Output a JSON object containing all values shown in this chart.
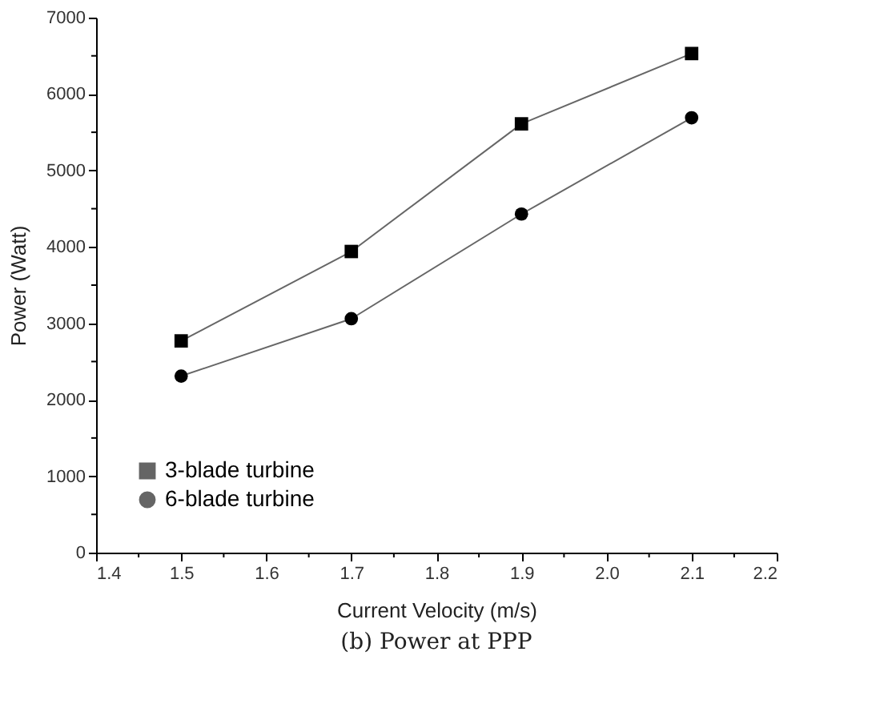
{
  "chart_data": {
    "type": "line",
    "xlabel": "Current Velocity (m/s)",
    "ylabel": "Power (Watt)",
    "x": [
      1.5,
      1.7,
      1.9,
      2.1
    ],
    "series": [
      {
        "name": "3-blade turbine",
        "color": "#000000",
        "marker": "square",
        "values": [
          2770,
          3940,
          5610,
          6530
        ]
      },
      {
        "name": "6-blade turbine",
        "color": "#000000",
        "marker": "circle",
        "values": [
          2310,
          3060,
          4430,
          5690
        ]
      }
    ],
    "xlim": [
      1.4,
      2.2
    ],
    "xticks": [
      1.4,
      {
        "value": 1.45,
        "label": null
      },
      1.5,
      {
        "value": 1.55,
        "label": null
      },
      1.6,
      {
        "value": 1.65,
        "label": null
      },
      1.7,
      {
        "value": 1.75,
        "label": null
      },
      1.8,
      {
        "value": 1.85,
        "label": null
      },
      1.9,
      {
        "value": 1.95,
        "label": null
      },
      {
        "value": 2.0,
        "label": "2.0"
      },
      {
        "value": 2.05,
        "label": null
      },
      2.1,
      {
        "value": 2.15,
        "label": null
      },
      2.2
    ],
    "ylim": [
      0,
      7000
    ],
    "yticks": [
      0,
      {
        "value": 500,
        "label": null
      },
      1000,
      {
        "value": 1500,
        "label": null
      },
      2000,
      {
        "value": 2500,
        "label": null
      },
      3000,
      {
        "value": 3500,
        "label": null
      },
      4000,
      {
        "value": 4500,
        "label": null
      },
      5000,
      {
        "value": 5500,
        "label": null
      },
      6000,
      {
        "value": 6500,
        "label": null
      },
      7000
    ],
    "grid": false,
    "legend": "bottom left",
    "line_style": "solid",
    "annotations": [
      "(b) Power at PPP"
    ]
  }
}
